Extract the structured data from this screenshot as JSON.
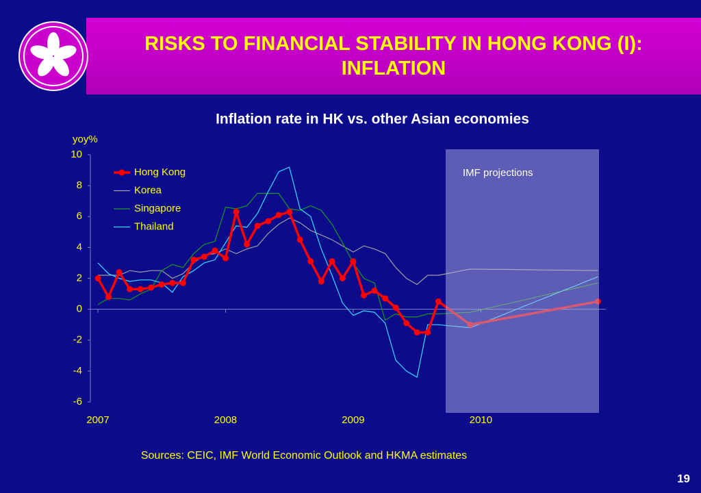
{
  "header": {
    "title": "RISKS TO FINANCIAL STABILITY IN HONG KONG (I): INFLATION"
  },
  "chart_data": {
    "type": "line",
    "title": "Inflation rate in HK vs. other Asian economies",
    "y_label": "yoy%",
    "annotation": "IMF projections",
    "categories": [
      "2007",
      null,
      null,
      null,
      null,
      null,
      null,
      null,
      null,
      null,
      null,
      null,
      "2008",
      null,
      null,
      null,
      null,
      null,
      null,
      null,
      null,
      null,
      null,
      null,
      "2009",
      null,
      null,
      null,
      null,
      null,
      null,
      null,
      null,
      null,
      null,
      null,
      "2010",
      null,
      null,
      null,
      null,
      null,
      null,
      null,
      null,
      null,
      null,
      null
    ],
    "ylim": [
      -6,
      10
    ],
    "yticks": [
      10,
      8,
      6,
      4,
      2,
      0,
      -2,
      -4,
      -6
    ],
    "legend": "top-left",
    "series": [
      {
        "name": "Hong Kong",
        "color": "#ff0000",
        "values": [
          2.0,
          0.8,
          2.4,
          1.3,
          1.3,
          1.4,
          1.6,
          1.7,
          1.7,
          3.2,
          3.4,
          3.8,
          3.3,
          6.3,
          4.2,
          5.4,
          5.7,
          6.1,
          6.3,
          4.5,
          3.1,
          1.8,
          3.1,
          2.0,
          3.1,
          0.9,
          1.2,
          0.7,
          0.1,
          -0.9,
          -1.5,
          -1.5,
          0.5,
          0.0,
          -0.5,
          -1.0,
          -0.875,
          -0.75,
          -0.625,
          -0.5,
          -0.375,
          -0.25,
          -0.125,
          0,
          0.125,
          0.25,
          0.375,
          0.5
        ]
      },
      {
        "name": "Korea",
        "color": "#a0a0a0",
        "values": [
          2.2,
          2.2,
          2.2,
          2.5,
          2.4,
          2.5,
          2.5,
          2.0,
          2.3,
          3.0,
          3.5,
          3.6,
          3.9,
          3.6,
          3.9,
          4.1,
          4.9,
          5.5,
          5.9,
          5.6,
          5.1,
          4.8,
          4.5,
          4.1,
          3.7,
          4.1,
          3.9,
          3.6,
          2.7,
          2.0,
          1.6,
          2.2,
          2.2,
          2.33,
          2.47,
          2.6,
          2.59,
          2.58,
          2.58,
          2.57,
          2.56,
          2.55,
          2.54,
          2.53,
          2.53,
          2.52,
          2.51,
          2.5
        ]
      },
      {
        "name": "Singapore",
        "color": "#1a9a1a",
        "values": [
          0.3,
          0.7,
          0.7,
          0.6,
          1.0,
          1.3,
          2.5,
          2.9,
          2.7,
          3.6,
          4.2,
          4.4,
          6.6,
          6.5,
          6.7,
          7.5,
          7.5,
          7.5,
          6.5,
          6.4,
          6.7,
          6.4,
          5.5,
          4.3,
          3.0,
          2.0,
          1.7,
          -0.7,
          -0.3,
          -0.5,
          -0.5,
          -0.3,
          -0.3,
          -0.27,
          -0.23,
          -0.2,
          -0.04,
          0.12,
          0.28,
          0.43,
          0.59,
          0.75,
          0.91,
          1.07,
          1.23,
          1.38,
          1.54,
          1.7
        ]
      },
      {
        "name": "Thailand",
        "color": "#33ddff",
        "values": [
          3.0,
          2.3,
          2.0,
          1.8,
          1.9,
          1.9,
          1.7,
          1.1,
          2.1,
          2.5,
          3.0,
          3.2,
          4.3,
          5.4,
          5.3,
          6.2,
          7.6,
          8.9,
          9.2,
          6.5,
          6.0,
          3.9,
          2.2,
          0.4,
          -0.4,
          -0.1,
          -0.2,
          -0.9,
          -3.3,
          -4.0,
          -4.4,
          -1.0,
          -1.0,
          -1.07,
          -1.13,
          -1.2,
          -0.93,
          -0.65,
          -0.38,
          -0.1,
          0.18,
          0.45,
          0.73,
          1.0,
          1.28,
          1.55,
          1.83,
          2.1
        ]
      }
    ]
  },
  "footer": {
    "source": "Sources: CEIC, IMF World Economic Outlook and HKMA estimates",
    "page": "19"
  }
}
